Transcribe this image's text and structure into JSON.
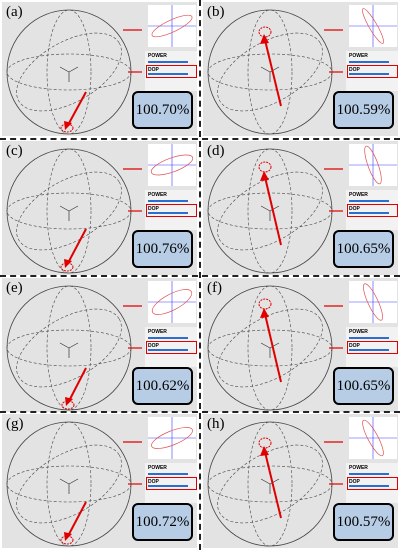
{
  "panels": [
    {
      "tag": "(a)",
      "dop_value": "100.70%",
      "power_label": "POWER",
      "dop_label": "DOP",
      "arrow": "down"
    },
    {
      "tag": "(b)",
      "dop_value": "100.59%",
      "power_label": "POWER",
      "dop_label": "DOP",
      "arrow": "up"
    },
    {
      "tag": "(c)",
      "dop_value": "100.76%",
      "power_label": "POWER",
      "dop_label": "DOP",
      "arrow": "down"
    },
    {
      "tag": "(d)",
      "dop_value": "100.65%",
      "power_label": "POWER",
      "dop_label": "DOP",
      "arrow": "up"
    },
    {
      "tag": "(e)",
      "dop_value": "100.62%",
      "power_label": "POWER",
      "dop_label": "DOP",
      "arrow": "down"
    },
    {
      "tag": "(f)",
      "dop_value": "100.65%",
      "power_label": "POWER",
      "dop_label": "DOP",
      "arrow": "up"
    },
    {
      "tag": "(g)",
      "dop_value": "100.72%",
      "power_label": "POWER",
      "dop_label": "DOP",
      "arrow": "down"
    },
    {
      "tag": "(h)",
      "dop_value": "100.57%",
      "power_label": "POWER",
      "dop_label": "DOP",
      "arrow": "up"
    }
  ],
  "colors": {
    "arrow": "#e00000",
    "value_box": "#b7cde6",
    "panel_bg": "#e3e3e3",
    "ellipse_axis": "#3a3aff"
  }
}
